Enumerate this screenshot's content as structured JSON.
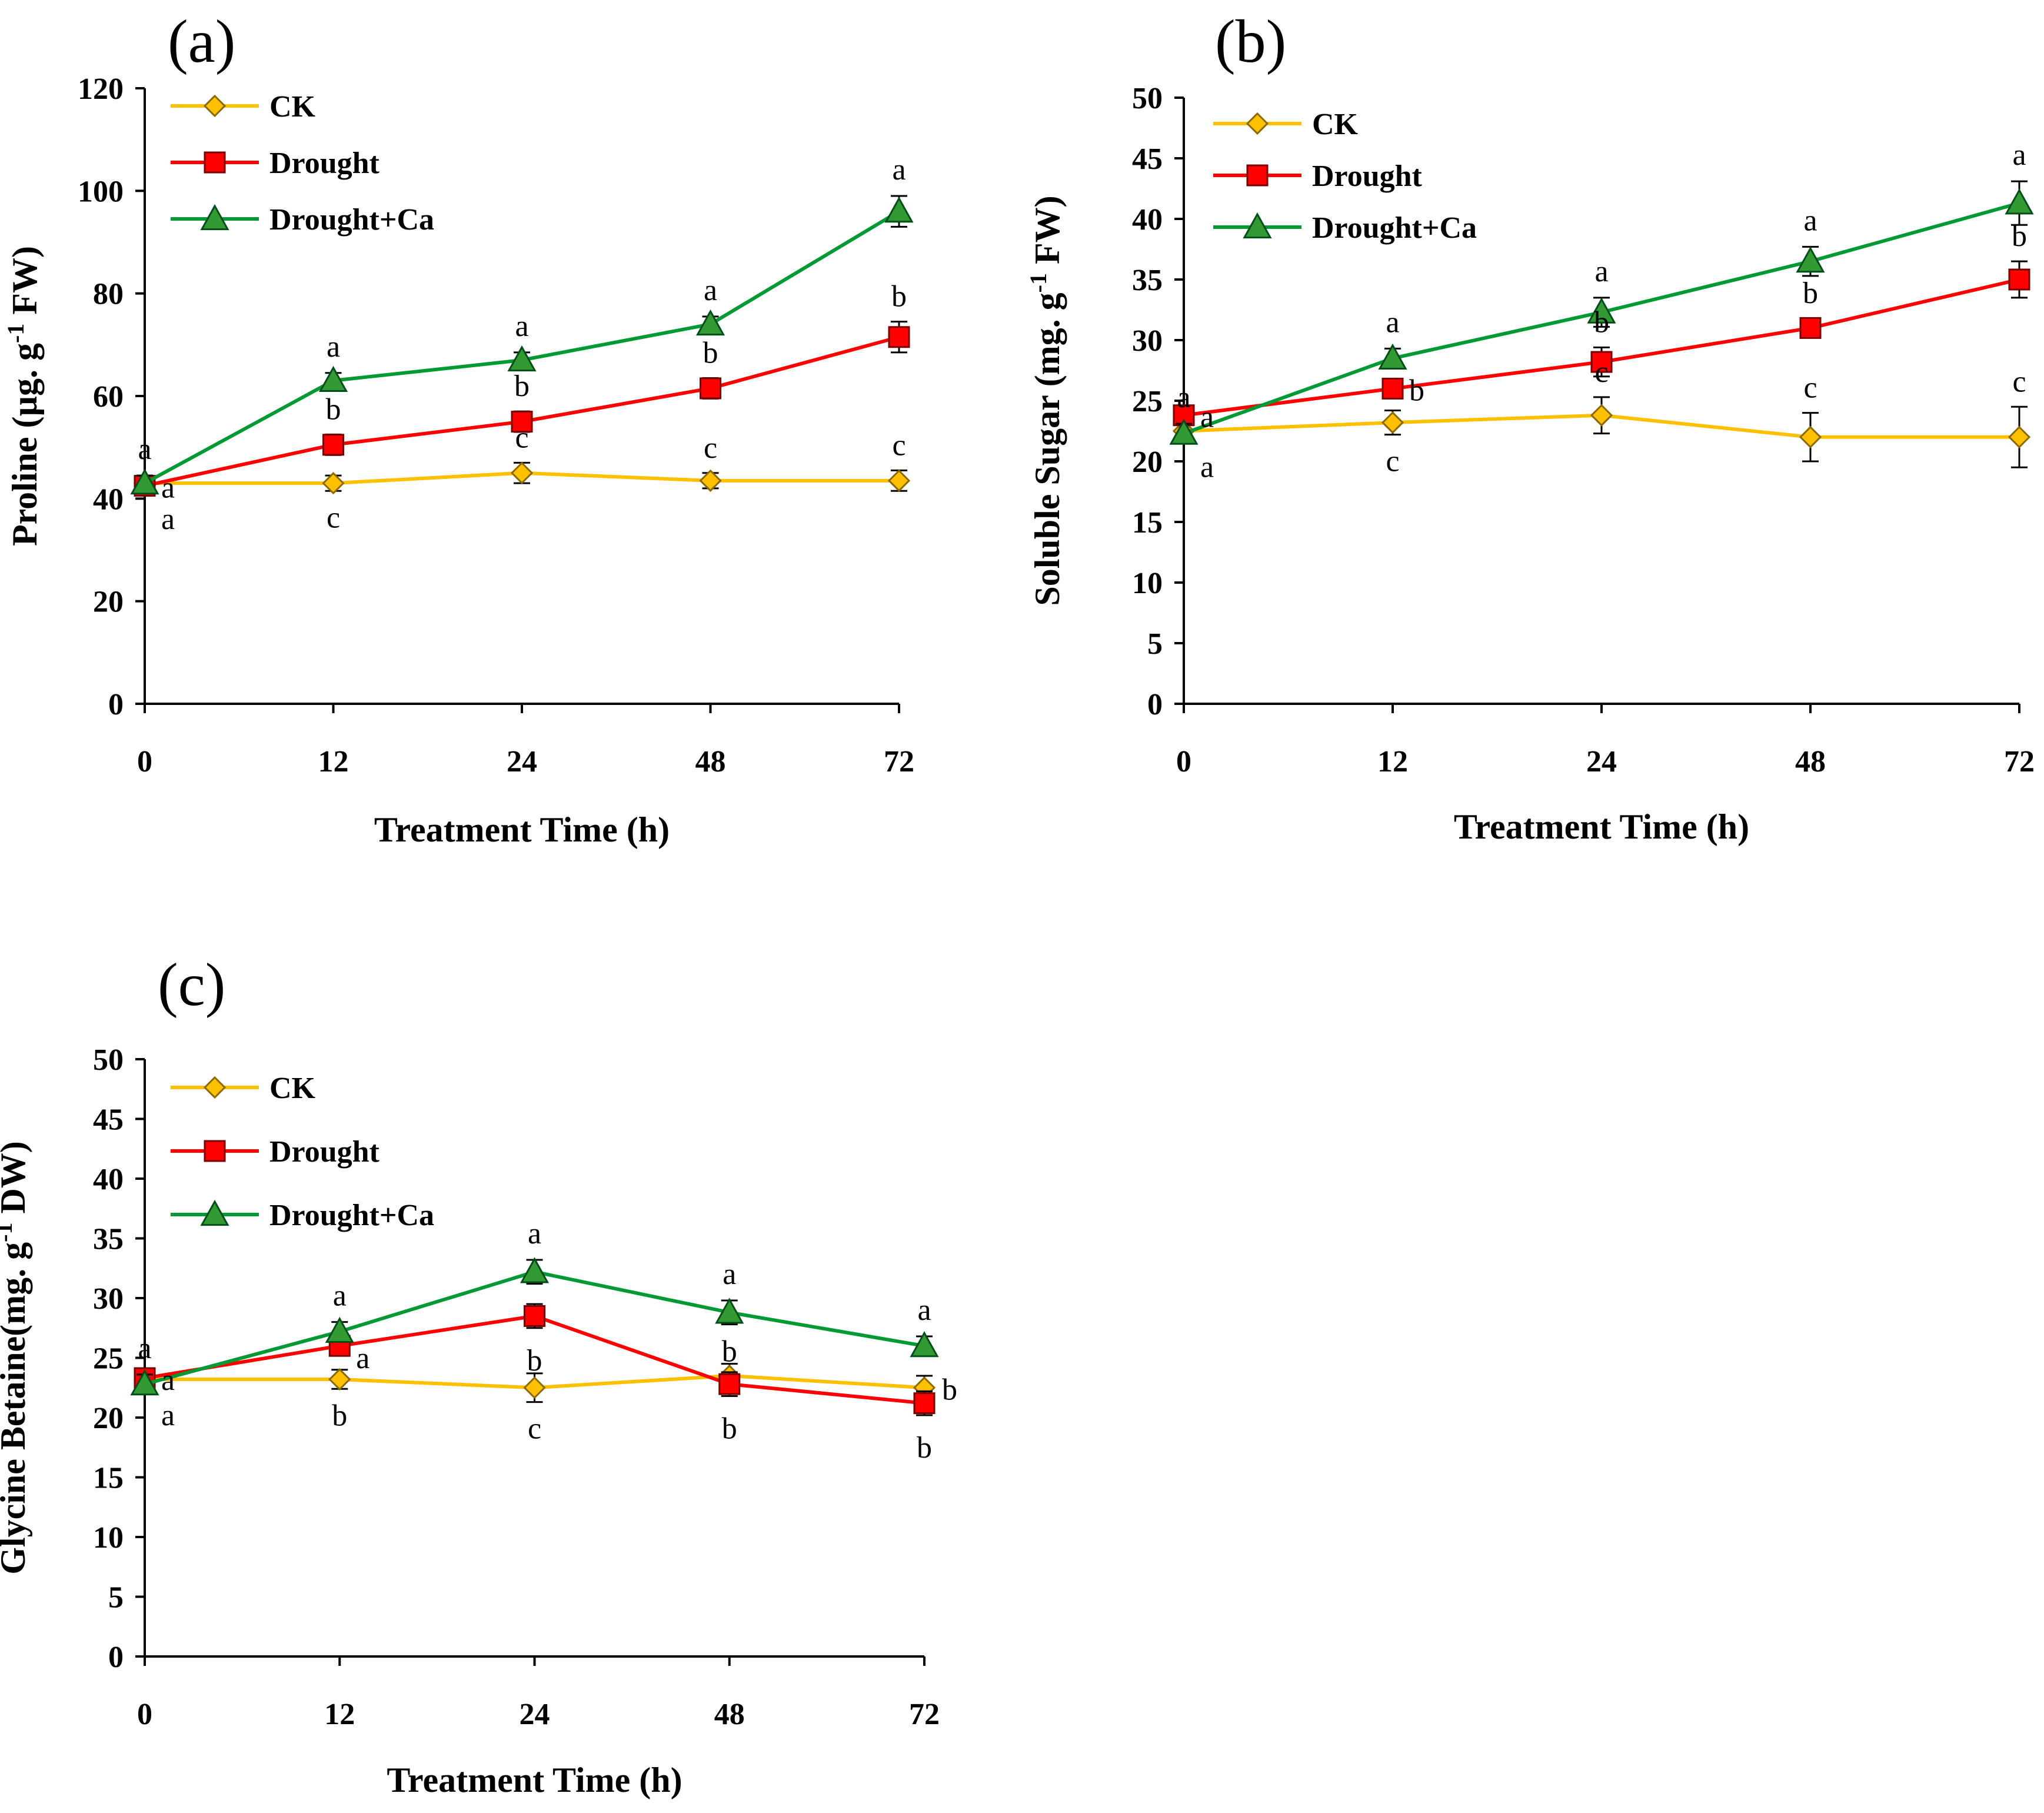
{
  "series_styles": [
    {
      "name": "CK",
      "color": "#FFC000",
      "marker": "diamond",
      "marker_color": "#FFC000"
    },
    {
      "name": "Drought",
      "color": "#FF0000",
      "marker": "square",
      "marker_color": "#FF0000"
    },
    {
      "name": "Drought+Ca",
      "color": "#009933",
      "marker": "triangle",
      "marker_color": "#339933"
    }
  ],
  "chart_data": [
    {
      "type": "line",
      "panel_label": "(a)",
      "title": "",
      "xlabel": "Treatment Time (h)",
      "ylabel_pre": "Proline (µg. g",
      "ylabel_sup": "-1",
      "ylabel_post": " FW)",
      "ylim": [
        0,
        120
      ],
      "yticks": [
        0,
        20,
        40,
        60,
        80,
        100,
        120
      ],
      "categories": [
        "0",
        "12",
        "24",
        "48",
        "72"
      ],
      "legend_position": "top-left",
      "series": [
        {
          "name": "CK",
          "values": [
            43,
            43,
            45,
            43.5,
            43.5
          ],
          "errors": [
            1.5,
            1.5,
            2,
            1.5,
            2
          ],
          "letters": [
            "a",
            "c",
            "c",
            "c",
            "c"
          ]
        },
        {
          "name": "Drought",
          "values": [
            42.5,
            50.5,
            55,
            61.5,
            71.5
          ],
          "errors": [
            1.5,
            2,
            2,
            2,
            3
          ],
          "letters": [
            "a",
            "b",
            "b",
            "b",
            "b"
          ]
        },
        {
          "name": "Drought+Ca",
          "values": [
            43,
            63,
            67,
            74,
            96
          ],
          "errors": [
            1.5,
            1.5,
            1.5,
            1.5,
            3
          ],
          "letters": [
            "a",
            "a",
            "a",
            "a",
            "a"
          ]
        }
      ]
    },
    {
      "type": "line",
      "panel_label": "(b)",
      "title": "",
      "xlabel": "Treatment Time (h)",
      "ylabel_pre": "Soluble Sugar (mg. g",
      "ylabel_sup": "-1",
      "ylabel_post": " FW)",
      "ylim": [
        0,
        50
      ],
      "yticks": [
        0,
        5,
        10,
        15,
        20,
        25,
        30,
        35,
        40,
        45,
        50
      ],
      "categories": [
        "0",
        "12",
        "24",
        "48",
        "72"
      ],
      "legend_position": "top-left",
      "series": [
        {
          "name": "CK",
          "values": [
            22.5,
            23.2,
            23.8,
            22,
            22
          ],
          "errors": [
            0.8,
            1,
            1.5,
            2,
            2.5
          ],
          "letters": [
            "a",
            "c",
            "c",
            "c",
            "c"
          ]
        },
        {
          "name": "Drought",
          "values": [
            23.8,
            26,
            28.2,
            31,
            35
          ],
          "errors": [
            0.8,
            0.8,
            1.2,
            0.8,
            1.5
          ],
          "letters": [
            "a",
            "b",
            "b",
            "b",
            "b"
          ]
        },
        {
          "name": "Drought+Ca",
          "values": [
            22.3,
            28.5,
            32.3,
            36.5,
            41.3
          ],
          "errors": [
            0.8,
            0.8,
            1.2,
            1.2,
            1.8
          ],
          "letters": [
            "a",
            "a",
            "a",
            "a",
            "a"
          ]
        }
      ]
    },
    {
      "type": "line",
      "panel_label": "(c)",
      "title": "",
      "xlabel": "Treatment Time (h)",
      "ylabel_pre": "Glycine Betaine(mg. g",
      "ylabel_sup": "-1",
      "ylabel_post": " DW)",
      "ylim": [
        0,
        50
      ],
      "yticks": [
        0,
        5,
        10,
        15,
        20,
        25,
        30,
        35,
        40,
        45,
        50
      ],
      "categories": [
        "0",
        "12",
        "24",
        "48",
        "72"
      ],
      "legend_position": "top-left",
      "series": [
        {
          "name": "CK",
          "values": [
            23.2,
            23.2,
            22.5,
            23.5,
            22.5
          ],
          "errors": [
            0.8,
            0.8,
            1.2,
            1,
            1
          ],
          "letters": [
            "a",
            "b",
            "c",
            "b",
            "b"
          ]
        },
        {
          "name": "Drought",
          "values": [
            23.3,
            26,
            28.5,
            22.8,
            21.2
          ],
          "errors": [
            0.8,
            0.8,
            1,
            1,
            1
          ],
          "letters": [
            "a",
            "a",
            "b",
            "b",
            "b"
          ]
        },
        {
          "name": "Drought+Ca",
          "values": [
            22.8,
            27.2,
            32.2,
            28.8,
            26
          ],
          "errors": [
            0.8,
            0.8,
            1,
            1,
            0.8
          ],
          "letters": [
            "a",
            "a",
            "a",
            "a",
            "a"
          ]
        }
      ]
    }
  ]
}
